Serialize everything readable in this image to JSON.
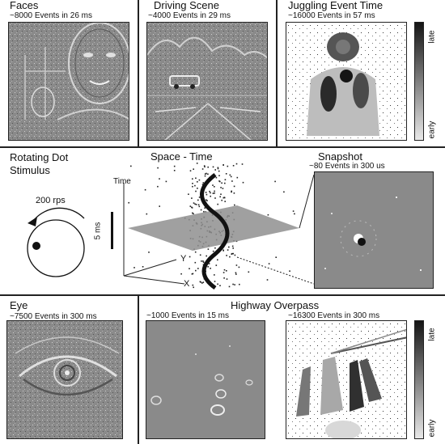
{
  "faces": {
    "title": "Faces",
    "sub": "~8000 Events in 26 ms"
  },
  "driving": {
    "title": "Driving Scene",
    "sub": "~4000 Events in 29 ms"
  },
  "juggling": {
    "title": "Juggling Event Time",
    "sub": "~16000 Events in 57 ms"
  },
  "colorbar_top": {
    "late": "late",
    "early": "early"
  },
  "rotating": {
    "title_line1": "Rotating Dot",
    "title_line2": "Stimulus",
    "rps": "200 rps"
  },
  "spacetime": {
    "title": "Space - Time",
    "time_label": "Time",
    "y_label": "Y",
    "x_label": "X",
    "scale_label": "5 ms"
  },
  "snapshot": {
    "title": "Snapshot",
    "sub": "~80 Events in 300 us"
  },
  "eye": {
    "title": "Eye",
    "sub": "~7500 Events in 300 ms"
  },
  "highway": {
    "title": "Highway Overpass",
    "sub_left": "~1000 Events in 15 ms",
    "sub_right": "~16300 Events in 300 ms"
  },
  "colorbar_bottom": {
    "late": "late",
    "early": "early"
  },
  "colors": {
    "frame": "#222222",
    "gray_bg": "#8a8a8a",
    "dot": "#111111"
  }
}
